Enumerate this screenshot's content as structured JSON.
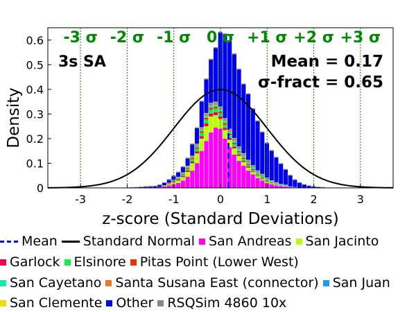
{
  "chart_data": {
    "type": "bar",
    "title": "",
    "panel_label": "3s SA",
    "xlabel": "z-score (Standard Deviations)",
    "ylabel": "Density",
    "xlim": [
      -3.7,
      3.7
    ],
    "ylim": [
      0,
      0.65
    ],
    "xticks": [
      -3,
      -2,
      -1,
      0,
      1,
      2,
      3
    ],
    "xtick_labels": [
      "-3",
      "-2",
      "-1",
      "0",
      "1",
      "2",
      "3"
    ],
    "yticks": [
      0,
      0.1,
      0.2,
      0.3,
      0.4,
      0.5,
      0.6
    ],
    "ytick_labels": [
      "0",
      "0.1",
      "0.2",
      "0.3",
      "0.4",
      "0.5",
      "0.6"
    ],
    "sigma_lines": [
      -3,
      -2,
      -1,
      0,
      1,
      2,
      3
    ],
    "sigma_labels": [
      "-3 σ",
      "-2 σ",
      "-1 σ",
      "0 σ",
      "+1 σ",
      "+2 σ",
      "+3 σ"
    ],
    "stats": {
      "mean_text": "Mean = 0.17",
      "sigma_fract_text": "σ-fract = 0.65",
      "mean": 0.17
    },
    "bin_width": 0.1,
    "x": [
      -1.9,
      -1.8,
      -1.7,
      -1.6,
      -1.5,
      -1.4,
      -1.3,
      -1.2,
      -1.1,
      -1.0,
      -0.9,
      -0.8,
      -0.7,
      -0.6,
      -0.5,
      -0.4,
      -0.3,
      -0.2,
      -0.1,
      0.0,
      0.1,
      0.2,
      0.3,
      0.4,
      0.5,
      0.6,
      0.7,
      0.8,
      0.9,
      1.0,
      1.1,
      1.2,
      1.3,
      1.4,
      1.5,
      1.6,
      1.7,
      1.8,
      1.9,
      2.0,
      2.1,
      2.2
    ],
    "series": [
      {
        "name": "San Andreas",
        "values": [
          0,
          0,
          0,
          0,
          0,
          0,
          0.003,
          0.006,
          0.01,
          0.015,
          0.02,
          0.03,
          0.045,
          0.07,
          0.1,
          0.15,
          0.19,
          0.225,
          0.245,
          0.24,
          0.2,
          0.165,
          0.135,
          0.11,
          0.09,
          0.07,
          0.055,
          0.04,
          0.03,
          0.02,
          0.015,
          0.01,
          0.007,
          0.005,
          0.003,
          0.002,
          0.001,
          0,
          0,
          0,
          0,
          0
        ]
      },
      {
        "name": "San Jacinto",
        "values": [
          0,
          0,
          0,
          0,
          0,
          0,
          0,
          0.002,
          0.004,
          0.007,
          0.01,
          0.014,
          0.02,
          0.03,
          0.04,
          0.05,
          0.06,
          0.065,
          0.05,
          0.04,
          0.035,
          0.03,
          0.025,
          0.02,
          0.015,
          0.012,
          0.009,
          0.007,
          0.005,
          0.004,
          0.003,
          0.002,
          0.001,
          0.001,
          0,
          0,
          0,
          0,
          0,
          0,
          0,
          0
        ]
      },
      {
        "name": "Garlock",
        "values": [
          0,
          0,
          0,
          0,
          0,
          0,
          0.001,
          0.001,
          0.002,
          0.003,
          0.004,
          0.005,
          0.006,
          0.007,
          0.008,
          0.01,
          0.012,
          0.012,
          0.012,
          0.01,
          0.009,
          0.008,
          0.007,
          0.006,
          0.005,
          0.004,
          0.003,
          0.002,
          0.002,
          0.001,
          0.001,
          0,
          0,
          0,
          0,
          0,
          0,
          0,
          0,
          0,
          0,
          0
        ]
      },
      {
        "name": "Elsinore",
        "values": [
          0,
          0,
          0,
          0,
          0,
          0,
          0,
          0.001,
          0.002,
          0.003,
          0.004,
          0.005,
          0.007,
          0.009,
          0.011,
          0.013,
          0.015,
          0.015,
          0.015,
          0.013,
          0.012,
          0.011,
          0.01,
          0.009,
          0.008,
          0.007,
          0.006,
          0.005,
          0.004,
          0.003,
          0.002,
          0.002,
          0.001,
          0.001,
          0,
          0,
          0,
          0,
          0,
          0,
          0,
          0
        ]
      },
      {
        "name": "Pitas Point (Lower West)",
        "values": [
          0,
          0,
          0,
          0,
          0,
          0,
          0,
          0.001,
          0.001,
          0.002,
          0.002,
          0.003,
          0.004,
          0.005,
          0.006,
          0.007,
          0.008,
          0.008,
          0.008,
          0.007,
          0.007,
          0.006,
          0.006,
          0.005,
          0.005,
          0.004,
          0.004,
          0.003,
          0.003,
          0.002,
          0.002,
          0.001,
          0.001,
          0.001,
          0,
          0,
          0,
          0,
          0,
          0,
          0,
          0
        ]
      },
      {
        "name": "San Cayetano",
        "values": [
          0,
          0,
          0,
          0,
          0,
          0,
          0,
          0,
          0.001,
          0.001,
          0.002,
          0.002,
          0.003,
          0.004,
          0.005,
          0.006,
          0.007,
          0.008,
          0.008,
          0.008,
          0.008,
          0.008,
          0.007,
          0.007,
          0.007,
          0.006,
          0.006,
          0.005,
          0.005,
          0.004,
          0.003,
          0.003,
          0.002,
          0.002,
          0.001,
          0.001,
          0,
          0,
          0,
          0,
          0,
          0
        ]
      },
      {
        "name": "Santa Susana East (connector)",
        "values": [
          0,
          0,
          0,
          0,
          0,
          0,
          0,
          0,
          0.001,
          0.001,
          0.001,
          0.002,
          0.002,
          0.003,
          0.004,
          0.005,
          0.006,
          0.006,
          0.006,
          0.006,
          0.006,
          0.006,
          0.006,
          0.005,
          0.005,
          0.005,
          0.004,
          0.004,
          0.003,
          0.003,
          0.002,
          0.002,
          0.001,
          0.001,
          0.001,
          0,
          0,
          0,
          0,
          0,
          0,
          0
        ]
      },
      {
        "name": "San Juan",
        "values": [
          0,
          0,
          0,
          0,
          0,
          0,
          0,
          0,
          0,
          0.001,
          0.001,
          0.001,
          0.002,
          0.002,
          0.003,
          0.003,
          0.004,
          0.004,
          0.004,
          0.004,
          0.004,
          0.004,
          0.004,
          0.004,
          0.004,
          0.004,
          0.003,
          0.003,
          0.003,
          0.003,
          0.002,
          0.002,
          0.002,
          0.001,
          0.001,
          0.001,
          0,
          0,
          0,
          0,
          0,
          0
        ]
      },
      {
        "name": "San Clemente",
        "values": [
          0,
          0,
          0,
          0,
          0,
          0,
          0,
          0,
          0,
          0,
          0.001,
          0.001,
          0.001,
          0.001,
          0.002,
          0.002,
          0.002,
          0.002,
          0.002,
          0.002,
          0.002,
          0.002,
          0.002,
          0.002,
          0.002,
          0.002,
          0.002,
          0.002,
          0.002,
          0.002,
          0.001,
          0.001,
          0.001,
          0.001,
          0,
          0,
          0,
          0,
          0,
          0,
          0,
          0
        ]
      },
      {
        "name": "Other",
        "values": [
          0.001,
          0.002,
          0.003,
          0.004,
          0.005,
          0.006,
          0.007,
          0.009,
          0.011,
          0.014,
          0.017,
          0.021,
          0.029,
          0.045,
          0.063,
          0.104,
          0.136,
          0.175,
          0.217,
          0.3,
          0.34,
          0.355,
          0.34,
          0.312,
          0.279,
          0.266,
          0.228,
          0.199,
          0.168,
          0.138,
          0.119,
          0.1,
          0.081,
          0.061,
          0.044,
          0.028,
          0.019,
          0.013,
          0.008,
          0.005,
          0.003,
          0.002
        ]
      },
      {
        "name": "RSQSim 4860 10x",
        "values": [
          0.002,
          0.002,
          0.002,
          0.003,
          0.003,
          0.003,
          0.003,
          0.003,
          0.004,
          0.004,
          0.004,
          0.004,
          0.004,
          0.004,
          0.004,
          0.004,
          0.004,
          0.004,
          0.004,
          0.004,
          0.004,
          0.004,
          0.004,
          0.004,
          0.004,
          0.004,
          0.004,
          0.004,
          0.004,
          0.004,
          0.004,
          0.003,
          0.003,
          0.003,
          0.003,
          0.003,
          0.003,
          0.002,
          0.002,
          0.002,
          0.002,
          0.002
        ]
      }
    ],
    "colors": {
      "San Andreas": "#ff00ff",
      "San Jacinto": "#bbff00",
      "Garlock": "#ee0055",
      "Elsinore": "#11ee44",
      "Pitas Point (Lower West)": "#ee3300",
      "San Cayetano": "#11eeaa",
      "Santa Susana East (connector)": "#ee7722",
      "San Juan": "#2299ee",
      "San Clemente": "#eedd00",
      "Other": "#0000ee",
      "RSQSim 4860 10x": "#888888",
      "Mean": "#0000ee",
      "Standard Normal": "#000000",
      "sigma": "#008800"
    },
    "legend": [
      [
        {
          "name": "Mean",
          "kind": "dash"
        },
        {
          "name": "Standard Normal",
          "kind": "line"
        },
        {
          "name": "San Andreas",
          "kind": "box"
        },
        {
          "name": "San Jacinto",
          "kind": "box"
        }
      ],
      [
        {
          "name": "Garlock",
          "kind": "box"
        },
        {
          "name": "Elsinore",
          "kind": "box"
        },
        {
          "name": "Pitas Point (Lower West)",
          "kind": "box"
        }
      ],
      [
        {
          "name": "San Cayetano",
          "kind": "box"
        },
        {
          "name": "Santa Susana East (connector)",
          "kind": "box"
        },
        {
          "name": "San Juan",
          "kind": "box"
        }
      ],
      [
        {
          "name": "San Clemente",
          "kind": "box"
        },
        {
          "name": "Other",
          "kind": "box"
        },
        {
          "name": "RSQSim 4860 10x",
          "kind": "box"
        }
      ]
    ],
    "legend_position": "bottom",
    "grid": false
  }
}
